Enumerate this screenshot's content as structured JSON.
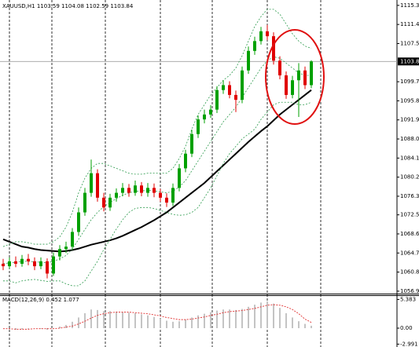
{
  "chart_data": [
    {
      "type": "candlestick",
      "title": "XAUUSD,H1  1103.59 1104.08 1102.59 1103.84",
      "up_color": "#00a000",
      "down_color": "#e00000",
      "candles": [
        [
          1062.5,
          1063.5,
          1061.2,
          1062
        ],
        [
          1062,
          1063.8,
          1061.5,
          1063
        ],
        [
          1063,
          1064,
          1061.8,
          1062.5
        ],
        [
          1062.5,
          1064.3,
          1061.9,
          1063.5
        ],
        [
          1063.5,
          1064.5,
          1062.2,
          1063
        ],
        [
          1063,
          1063.8,
          1061.2,
          1062
        ],
        [
          1062,
          1063.8,
          1061.4,
          1063
        ],
        [
          1063,
          1063.6,
          1059.5,
          1060.5
        ],
        [
          1060.5,
          1064.8,
          1060,
          1064
        ],
        [
          1064,
          1066.3,
          1063.2,
          1065.5
        ],
        [
          1065.5,
          1067,
          1064.7,
          1066
        ],
        [
          1066,
          1069.8,
          1065.3,
          1069
        ],
        [
          1069,
          1074,
          1068.2,
          1073
        ],
        [
          1073,
          1078,
          1072.3,
          1077
        ],
        [
          1077,
          1083.8,
          1076.2,
          1081
        ],
        [
          1081,
          1081.8,
          1075.2,
          1076
        ],
        [
          1076,
          1077,
          1073.2,
          1074
        ],
        [
          1074,
          1076.8,
          1073.3,
          1076
        ],
        [
          1076,
          1077.9,
          1075.2,
          1077
        ],
        [
          1077,
          1079,
          1076.3,
          1078
        ],
        [
          1078,
          1078.8,
          1076.2,
          1077
        ],
        [
          1077,
          1079.5,
          1076.4,
          1078.5
        ],
        [
          1078.5,
          1079.2,
          1076.3,
          1077
        ],
        [
          1077,
          1079,
          1076.2,
          1078
        ],
        [
          1078,
          1078.9,
          1076.1,
          1077
        ],
        [
          1077,
          1077.8,
          1075.2,
          1076
        ],
        [
          1076,
          1076.9,
          1074.1,
          1075
        ],
        [
          1075,
          1078.9,
          1074.3,
          1078
        ],
        [
          1078,
          1082.9,
          1077.3,
          1082
        ],
        [
          1082,
          1085.8,
          1081.2,
          1085
        ],
        [
          1085,
          1089.9,
          1084.3,
          1089
        ],
        [
          1089,
          1092.8,
          1088.2,
          1092
        ],
        [
          1092,
          1094,
          1091.2,
          1093
        ],
        [
          1093,
          1094.9,
          1092.3,
          1094
        ],
        [
          1094,
          1098.8,
          1093.3,
          1098
        ],
        [
          1098,
          1100,
          1097.2,
          1099
        ],
        [
          1099,
          1099.8,
          1096.3,
          1097
        ],
        [
          1097,
          1097.9,
          1093.5,
          1096
        ],
        [
          1096,
          1102.8,
          1095.3,
          1102
        ],
        [
          1102,
          1106.9,
          1101.3,
          1106
        ],
        [
          1106,
          1108.9,
          1105.2,
          1108
        ],
        [
          1108,
          1110.9,
          1107.3,
          1110
        ],
        [
          1110,
          1111.3,
          1108.2,
          1109
        ],
        [
          1109,
          1109.8,
          1103.2,
          1104
        ],
        [
          1104,
          1104.9,
          1100.2,
          1101
        ],
        [
          1101,
          1101.8,
          1096.2,
          1097
        ],
        [
          1097,
          1100.9,
          1096.3,
          1100
        ],
        [
          1100,
          1103.5,
          1092.5,
          1102
        ],
        [
          1102,
          1102.8,
          1098.2,
          1099
        ],
        [
          1099,
          1104.08,
          1098.4,
          1103.84
        ]
      ],
      "lines": [
        {
          "color": "#000000",
          "style": "solid",
          "values": [
            1067.5,
            1067,
            1066.5,
            1066,
            1065.8,
            1065.5,
            1065.3,
            1065.2,
            1065.1,
            1065,
            1065.1,
            1065.3,
            1065.6,
            1066,
            1066.4,
            1066.7,
            1067,
            1067.3,
            1067.7,
            1068.2,
            1068.8,
            1069.4,
            1070,
            1070.7,
            1071.4,
            1072.2,
            1073,
            1074,
            1075,
            1076,
            1077,
            1078,
            1079,
            1080.2,
            1081.4,
            1082.6,
            1083.8,
            1085,
            1086.2,
            1087.4,
            1088.5,
            1089.6,
            1090.6,
            1091.8,
            1093,
            1094,
            1095,
            1096,
            1097,
            1098
          ]
        },
        {
          "color": "#2e9b4e",
          "style": "dotted",
          "values": [
            1066,
            1066.5,
            1067,
            1067,
            1066.8,
            1066.5,
            1066.5,
            1066.5,
            1067,
            1068,
            1070,
            1073,
            1077,
            1080,
            1082,
            1083,
            1083,
            1082.5,
            1082,
            1081.5,
            1081,
            1080.8,
            1080.8,
            1081,
            1081,
            1081,
            1081,
            1082,
            1084,
            1086.5,
            1090,
            1093,
            1095,
            1097,
            1098.5,
            1100,
            1101,
            1102.5,
            1105,
            1108,
            1111,
            1113,
            1114.5,
            1114.5,
            1113.5,
            1111.5,
            1109.5,
            1108,
            1107,
            1106.5
          ]
        },
        {
          "color": "#2e9b4e",
          "style": "dotted",
          "values": [
            1062.5,
            1062.7,
            1062.8,
            1063,
            1063,
            1062.9,
            1062.8,
            1062.7,
            1063,
            1063.5,
            1064.2,
            1065.5,
            1067.5,
            1069.5,
            1071.5,
            1073,
            1074.2,
            1075,
            1075.8,
            1076.5,
            1077,
            1077.3,
            1077.4,
            1077.5,
            1077.4,
            1077.2,
            1077,
            1077.3,
            1078.2,
            1079.5,
            1081.5,
            1083.5,
            1085.5,
            1087.5,
            1089.5,
            1091.5,
            1093,
            1094.5,
            1096.5,
            1098.5,
            1100.5,
            1102.5,
            1104,
            1104.8,
            1104.5,
            1103.5,
            1102.5,
            1101.5,
            1101,
            1101
          ]
        },
        {
          "color": "#2e9b4e",
          "style": "dotted",
          "values": [
            1059,
            1059,
            1058.6,
            1059,
            1059.2,
            1059.3,
            1059.1,
            1058.9,
            1059,
            1059,
            1058.4,
            1058,
            1058,
            1059,
            1061,
            1063,
            1065.4,
            1067.5,
            1069.6,
            1071.5,
            1073,
            1073.8,
            1074,
            1074,
            1073.8,
            1073.4,
            1073,
            1072.6,
            1072.4,
            1072.5,
            1073,
            1074,
            1076,
            1078,
            1080.5,
            1083,
            1085,
            1086.5,
            1088,
            1089,
            1090,
            1092,
            1093.5,
            1095,
            1095.5,
            1095.5,
            1095.5,
            1095,
            1095,
            1095.5
          ]
        }
      ],
      "ylim": [
        1056.4,
        1116.4
      ],
      "yticks": [
        {
          "value": 1115.3,
          "label": "1115.30"
        },
        {
          "value": 1111.4,
          "label": "1111.40"
        },
        {
          "value": 1107.5,
          "label": "1107.50"
        },
        {
          "value": 1099.7,
          "label": "1099.70"
        },
        {
          "value": 1095.8,
          "label": "1095.80"
        },
        {
          "value": 1091.9,
          "label": "1091.90"
        },
        {
          "value": 1088,
          "label": "1088.00"
        },
        {
          "value": 1084.1,
          "label": "1084.10"
        },
        {
          "value": 1080.2,
          "label": "1080.20"
        },
        {
          "value": 1076.3,
          "label": "1076.30"
        },
        {
          "value": 1072.5,
          "label": "1072.50"
        },
        {
          "value": 1068.6,
          "label": "1068.60"
        },
        {
          "value": 1064.7,
          "label": "1064.70"
        },
        {
          "value": 1060.8,
          "label": "1060.80"
        },
        {
          "value": 1056.9,
          "label": "1056.90"
        }
      ],
      "price_line": {
        "value": 1103.84,
        "label": "1103.84"
      }
    },
    {
      "type": "macd",
      "title": "MACD(12,26,9) 0.452 1.077",
      "hist_color": "#b0b0b0",
      "signal_color": "#e03030",
      "histogram": [
        0,
        -0.2,
        -0.3,
        -0.2,
        -0.1,
        0,
        -0.1,
        -0.3,
        0,
        0.3,
        0.6,
        1.2,
        2,
        2.8,
        3.5,
        3.4,
        3.2,
        3.2,
        3.1,
        3,
        2.9,
        2.8,
        2.6,
        2.4,
        2.1,
        1.8,
        1.4,
        1.2,
        1.3,
        1.6,
        2,
        2.4,
        2.7,
        3,
        3.3,
        3.5,
        3.5,
        3.4,
        3.6,
        4,
        4.4,
        4.8,
        5,
        4.6,
        3.8,
        2.8,
        2,
        1.3,
        0.8,
        0.452
      ],
      "signal": [
        -0.1,
        -0.1,
        -0.2,
        -0.2,
        -0.2,
        -0.1,
        -0.1,
        -0.1,
        -0.1,
        0,
        0.2,
        0.4,
        0.8,
        1.3,
        1.9,
        2.4,
        2.7,
        2.9,
        3,
        3,
        3,
        2.9,
        2.8,
        2.7,
        2.5,
        2.3,
        2,
        1.8,
        1.6,
        1.6,
        1.7,
        1.9,
        2.1,
        2.4,
        2.6,
        2.9,
        3.1,
        3.2,
        3.3,
        3.5,
        3.7,
        4,
        4.3,
        4.4,
        4.3,
        4,
        3.5,
        2.7,
        1.7,
        1.077
      ],
      "ylim": [
        -3.53,
        6.18
      ],
      "yticks": [
        5.383,
        {
          "value": 0,
          "label": "0.00"
        },
        -2.991
      ]
    }
  ]
}
